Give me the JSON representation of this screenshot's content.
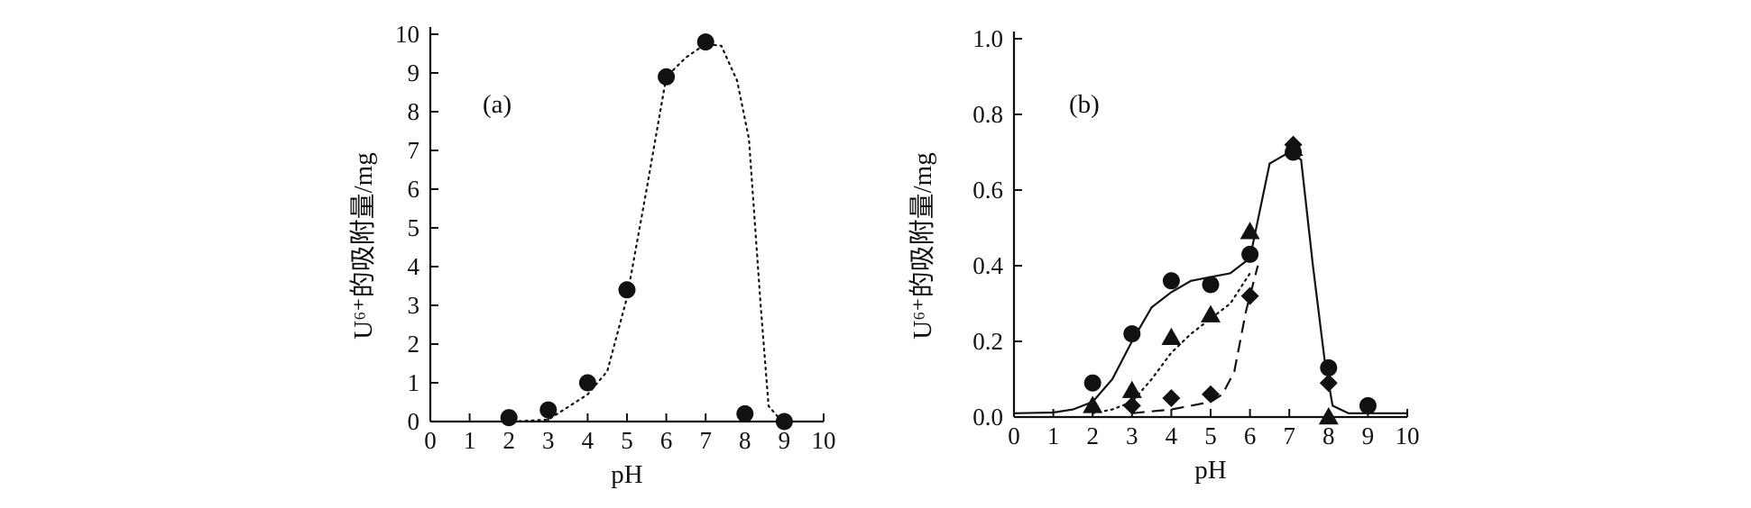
{
  "chart_data": [
    {
      "type": "scatter",
      "panel_label": "(a)",
      "xlabel": "pH",
      "ylabel": "U⁶⁺的吸附量/mg",
      "xlim": [
        0,
        10
      ],
      "ylim": [
        0,
        10
      ],
      "xticks": [
        "0",
        "1",
        "2",
        "3",
        "4",
        "5",
        "6",
        "7",
        "8",
        "9",
        "10"
      ],
      "yticks": [
        "0",
        "1",
        "2",
        "3",
        "4",
        "5",
        "6",
        "7",
        "8",
        "9",
        "10"
      ],
      "series": [
        {
          "marker": "circle",
          "x": [
            2,
            3,
            4,
            5,
            6,
            7,
            8,
            9
          ],
          "y": [
            0.1,
            0.3,
            1.0,
            3.4,
            8.9,
            9.8,
            0.2,
            0.0
          ],
          "fit_style": "dotted",
          "fit": {
            "x": [
              2.1,
              3,
              4,
              4.5,
              5,
              5.5,
              6,
              6.5,
              7,
              7.4,
              7.8,
              8.1,
              8.4,
              8.6,
              8.9,
              9.2
            ],
            "y": [
              0,
              0.05,
              0.7,
              1.3,
              3.2,
              6.0,
              8.9,
              9.4,
              9.75,
              9.7,
              8.8,
              7.3,
              3.0,
              0.4,
              0.05,
              0
            ]
          }
        }
      ]
    },
    {
      "type": "scatter",
      "panel_label": "(b)",
      "xlabel": "pH",
      "ylabel": "U⁶⁺的吸附量/mg",
      "xlim": [
        0,
        10
      ],
      "ylim": [
        0,
        1.0
      ],
      "xticks": [
        "0",
        "1",
        "2",
        "3",
        "4",
        "5",
        "6",
        "7",
        "8",
        "9",
        "10"
      ],
      "yticks": [
        "0.0",
        "0.2",
        "0.4",
        "0.6",
        "0.8",
        "1.0"
      ],
      "series": [
        {
          "marker": "circle",
          "x": [
            2,
            3,
            4,
            5,
            6,
            7.1,
            8,
            9
          ],
          "y": [
            0.09,
            0.22,
            0.36,
            0.35,
            0.43,
            0.7,
            0.13,
            0.03
          ],
          "fit_style": "solid",
          "fit": {
            "x": [
              0,
              1,
              1.5,
              2,
              2.5,
              3,
              3.5,
              4,
              4.5,
              5,
              5.5,
              6,
              6.5,
              7,
              7.3,
              7.6,
              7.9,
              8.1,
              8.5,
              9,
              10
            ],
            "y": [
              0.01,
              0.012,
              0.02,
              0.04,
              0.1,
              0.2,
              0.29,
              0.33,
              0.36,
              0.37,
              0.38,
              0.42,
              0.67,
              0.7,
              0.68,
              0.4,
              0.15,
              0.03,
              0.01,
              0.01,
              0.01
            ]
          }
        },
        {
          "marker": "triangle",
          "x": [
            2,
            3,
            4,
            5,
            6,
            7.1,
            8
          ],
          "y": [
            0.03,
            0.07,
            0.21,
            0.27,
            0.49,
            0.71,
            0.0
          ],
          "fit_style": "dotted",
          "fit": {
            "x": [
              2,
              2.5,
              3,
              3.5,
              4,
              4.5,
              5,
              5.5,
              6
            ],
            "y": [
              0.01,
              0.02,
              0.04,
              0.1,
              0.17,
              0.22,
              0.26,
              0.3,
              0.38
            ]
          }
        },
        {
          "marker": "diamond",
          "x": [
            3,
            4,
            5,
            6,
            7.1,
            8
          ],
          "y": [
            0.03,
            0.05,
            0.06,
            0.32,
            0.72,
            0.09
          ],
          "fit_style": "dashed",
          "fit": {
            "x": [
              3,
              3.5,
              4,
              4.5,
              5,
              5.3,
              5.6,
              5.9,
              6.2
            ],
            "y": [
              0.01,
              0.015,
              0.02,
              0.03,
              0.04,
              0.06,
              0.12,
              0.28,
              0.4
            ]
          }
        }
      ]
    }
  ]
}
